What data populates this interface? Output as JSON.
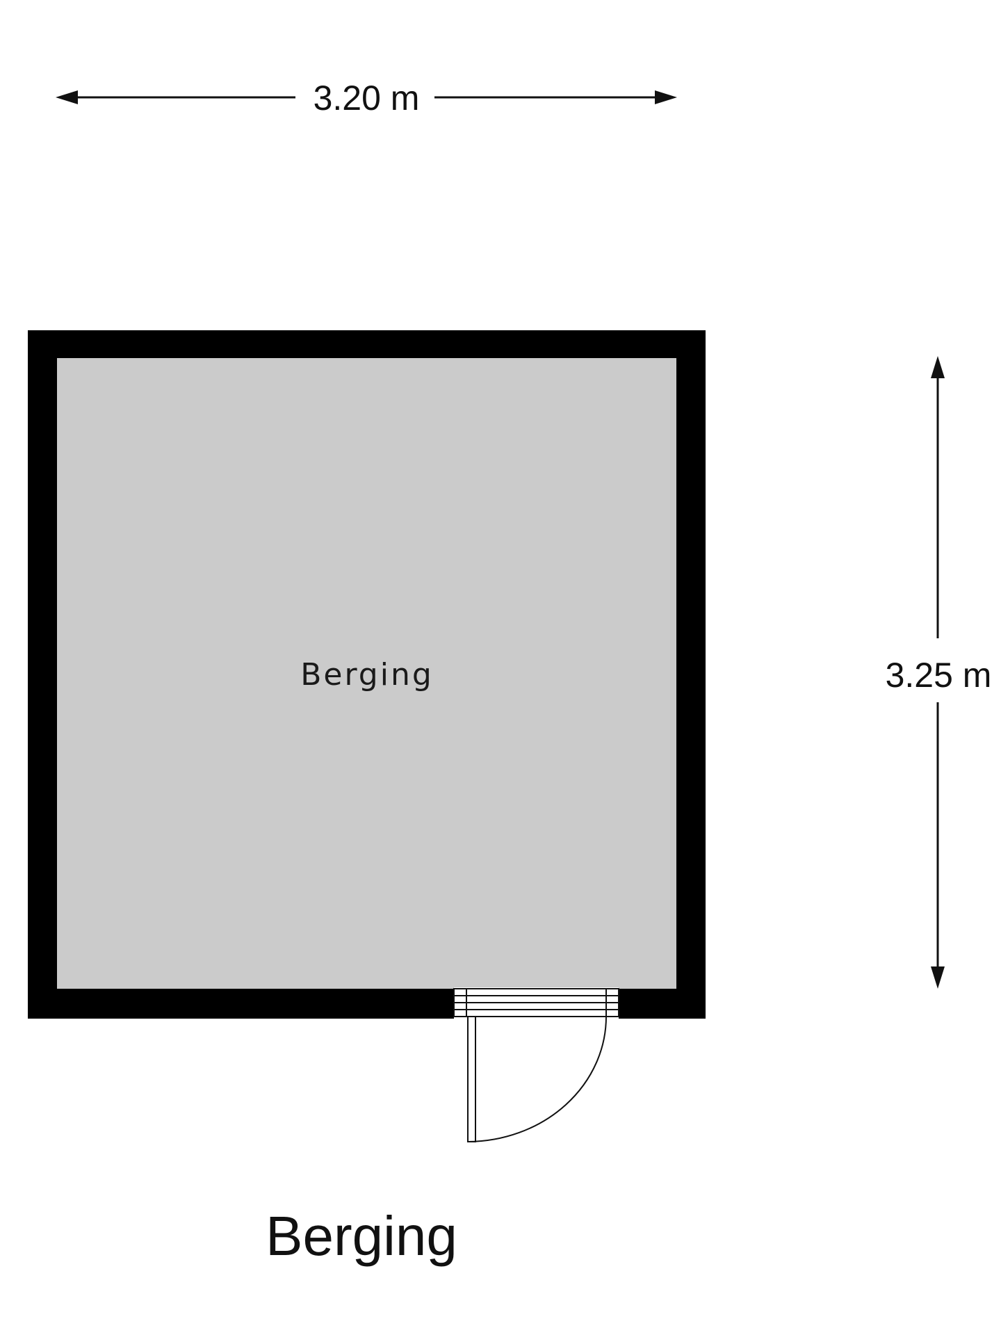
{
  "plan": {
    "title": "Berging",
    "colors": {
      "wall": "#000000",
      "floor": "#cbcbcb",
      "background": "#ffffff"
    },
    "rooms": [
      {
        "label": "Berging"
      }
    ],
    "dimensions": {
      "width": {
        "label": "3.20 m"
      },
      "height": {
        "label": "3.25 m"
      }
    },
    "door": {
      "icon": "door-swing-icon"
    }
  }
}
